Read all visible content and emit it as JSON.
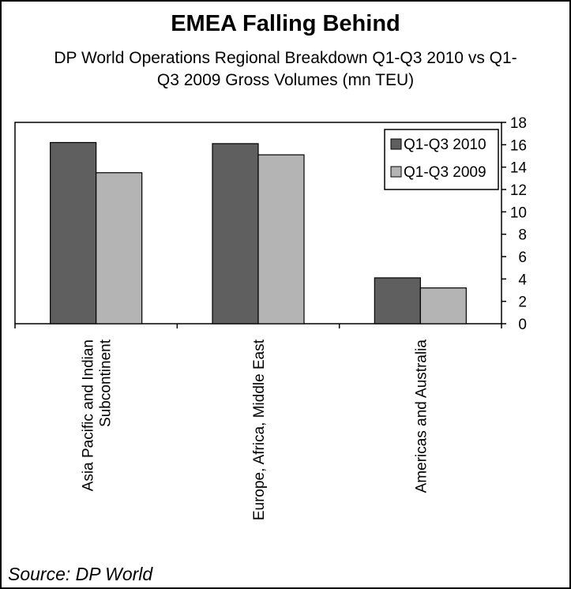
{
  "title": "EMEA Falling Behind",
  "subtitle_line1": "DP World Operations Regional Breakdown Q1-Q3 2010 vs Q1-",
  "subtitle_line2": "Q3 2009 Gross Volumes (mn TEU)",
  "source": "Source: DP World",
  "colors": {
    "q1q3_2010": "#5f5f5f",
    "q1q3_2009": "#b4b4b4"
  },
  "chart_data": {
    "type": "bar",
    "title": "EMEA Falling Behind",
    "subtitle": "DP World Operations Regional Breakdown Q1-Q3 2010 vs Q1-Q3 2009 Gross Volumes (mn TEU)",
    "categories": [
      [
        "Asia Pacific and Indian",
        "Subcontinent"
      ],
      [
        "Europe, Africa, Middle East"
      ],
      [
        "Americas and Australia"
      ]
    ],
    "series": [
      {
        "name": "Q1-Q3 2010",
        "values": [
          16.2,
          16.1,
          4.1
        ]
      },
      {
        "name": "Q1-Q3 2009",
        "values": [
          13.5,
          15.1,
          3.2
        ]
      }
    ],
    "y_ticks": [
      "0",
      "2",
      "4",
      "6",
      "8",
      "10",
      "12",
      "14",
      "16",
      "18"
    ],
    "ylim": [
      0,
      18
    ],
    "y_axis_side": "right",
    "grid": false,
    "legend_position": "top-right"
  }
}
